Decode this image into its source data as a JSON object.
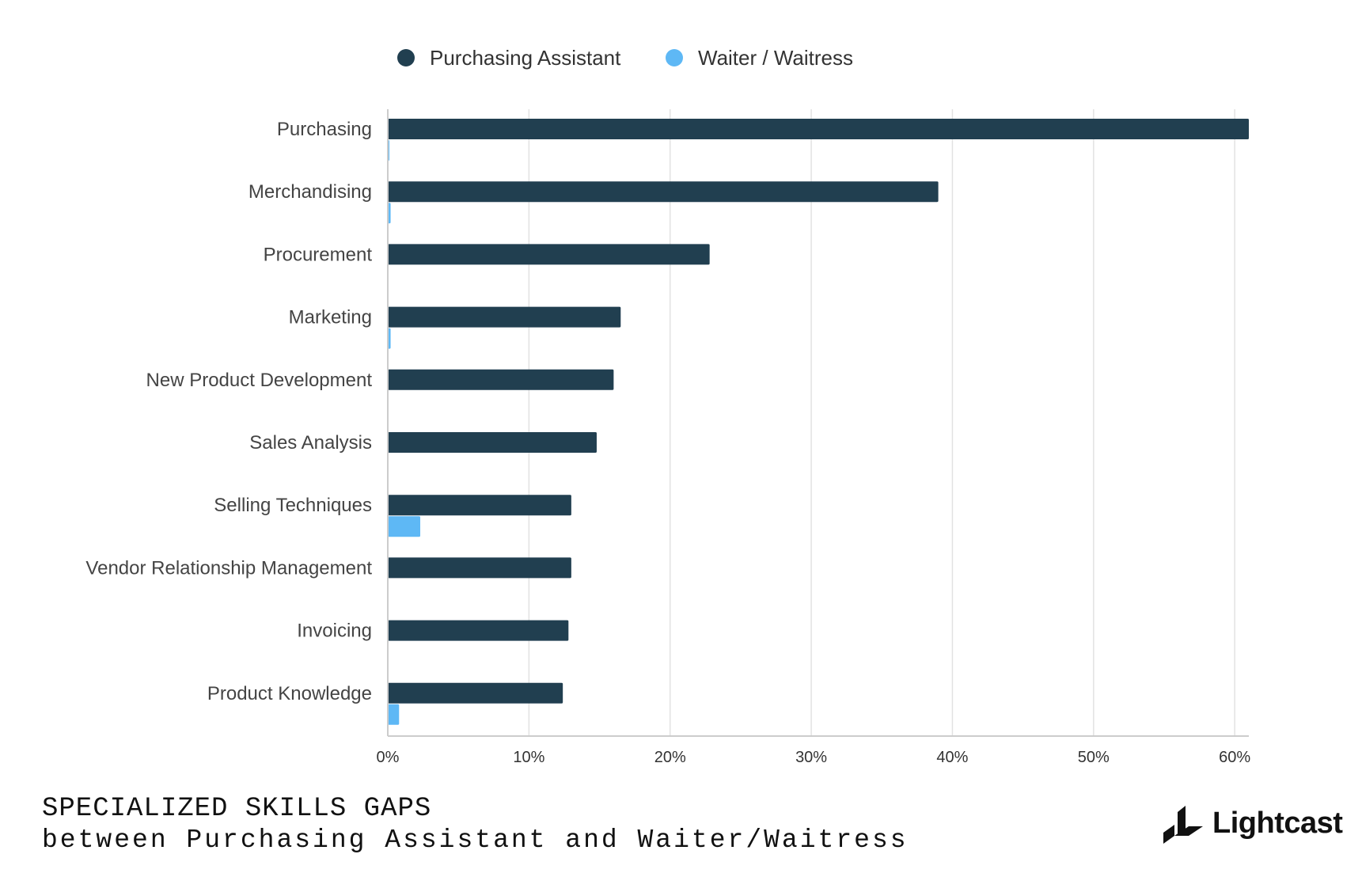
{
  "chart_data": {
    "type": "bar",
    "orientation": "horizontal",
    "categories": [
      "Purchasing",
      "Merchandising",
      "Procurement",
      "Marketing",
      "New Product Development",
      "Sales Analysis",
      "Selling Techniques",
      "Vendor Relationship Management",
      "Invoicing",
      "Product Knowledge"
    ],
    "series": [
      {
        "name": "Purchasing Assistant",
        "color": "#213f50",
        "values": [
          61,
          39,
          22.8,
          16.5,
          16,
          14.8,
          13,
          13,
          12.8,
          12.4
        ]
      },
      {
        "name": "Waiter / Waitress",
        "color": "#5eb8f5",
        "values": [
          0.1,
          0.2,
          0,
          0.2,
          0,
          0,
          2.3,
          0,
          0,
          0.8
        ]
      }
    ],
    "xlim": [
      0,
      61
    ],
    "x_ticks": [
      0,
      10,
      20,
      30,
      40,
      50,
      60
    ],
    "x_tick_labels": [
      "0%",
      "10%",
      "20%",
      "30%",
      "40%",
      "50%",
      "60%"
    ],
    "grid": true,
    "legend_position": "top"
  },
  "footer": {
    "title": "SPECIALIZED SKILLS GAPS",
    "subtitle": "between Purchasing Assistant and Waiter/Waitress"
  },
  "brand": {
    "name": "Lightcast",
    "icon": "lightcast-logo-icon"
  }
}
